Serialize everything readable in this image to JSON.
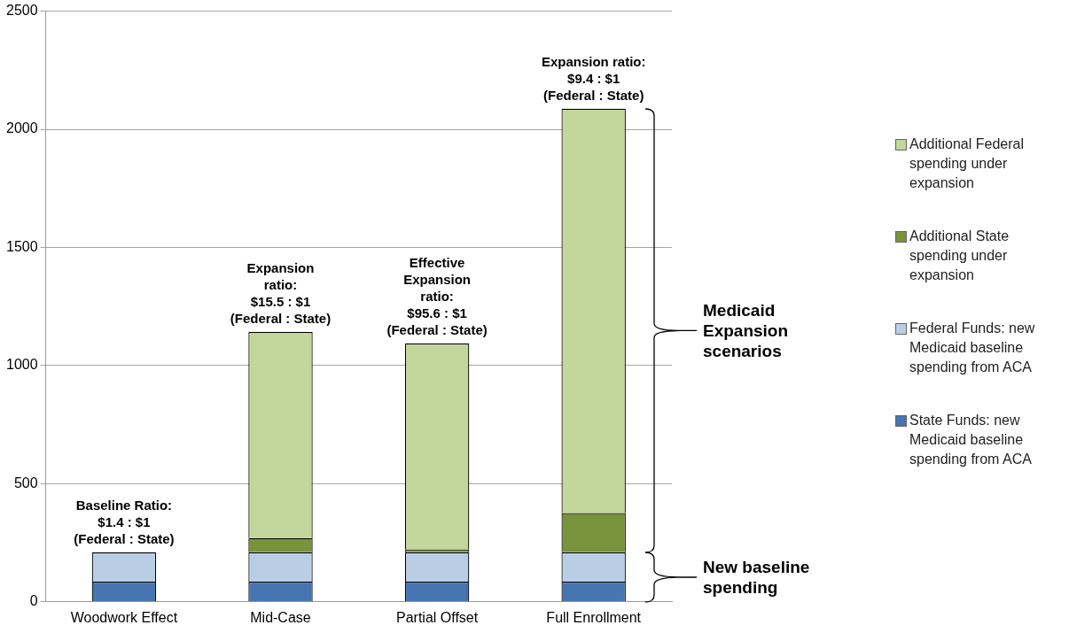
{
  "chart_data": {
    "type": "bar",
    "stacked": true,
    "categories": [
      "Woodwork Effect",
      "Mid-Case",
      "Partial Offset",
      "Full Enrollment"
    ],
    "series": [
      {
        "name": "State Funds: new Medicaid baseline spending from ACA",
        "color": "#4675b1",
        "values": [
          85,
          85,
          85,
          85
        ]
      },
      {
        "name": "Federal Funds: new Medicaid baseline spending from ACA",
        "color": "#b9cde5",
        "values": [
          125,
          125,
          125,
          125
        ]
      },
      {
        "name": "Additional State spending under expansion",
        "color": "#77933c",
        "values": [
          0,
          60,
          12,
          166
        ]
      },
      {
        "name": "Additional Federal spending under expansion",
        "color": "#c3d69b",
        "values": [
          0,
          872,
          871,
          1711
        ]
      }
    ],
    "ylim": [
      0,
      2500
    ],
    "yticks": [
      0,
      500,
      1000,
      1500,
      2000,
      2500
    ],
    "grid": "y",
    "legend": "right",
    "annotations": [
      {
        "text": "Baseline Ratio:\n$1.4 : $1\n(Federal : State)",
        "x": "Woodwork Effect",
        "y": 210
      },
      {
        "text": "Expansion\nratio:\n$15.5 : $1\n(Federal : State)",
        "x": "Mid-Case",
        "y": 1142
      },
      {
        "text": "Effective\nExpansion\nratio:\n$95.6 : $1\n(Federal : State)",
        "x": "Partial Offset",
        "y": 1093
      },
      {
        "text": "Expansion ratio:\n$9.4 : $1\n(Federal : State)",
        "x": "Full Enrollment",
        "y": 2087
      },
      "Medicaid\nExpansion\nscenarios",
      "New baseline\nspending"
    ]
  }
}
